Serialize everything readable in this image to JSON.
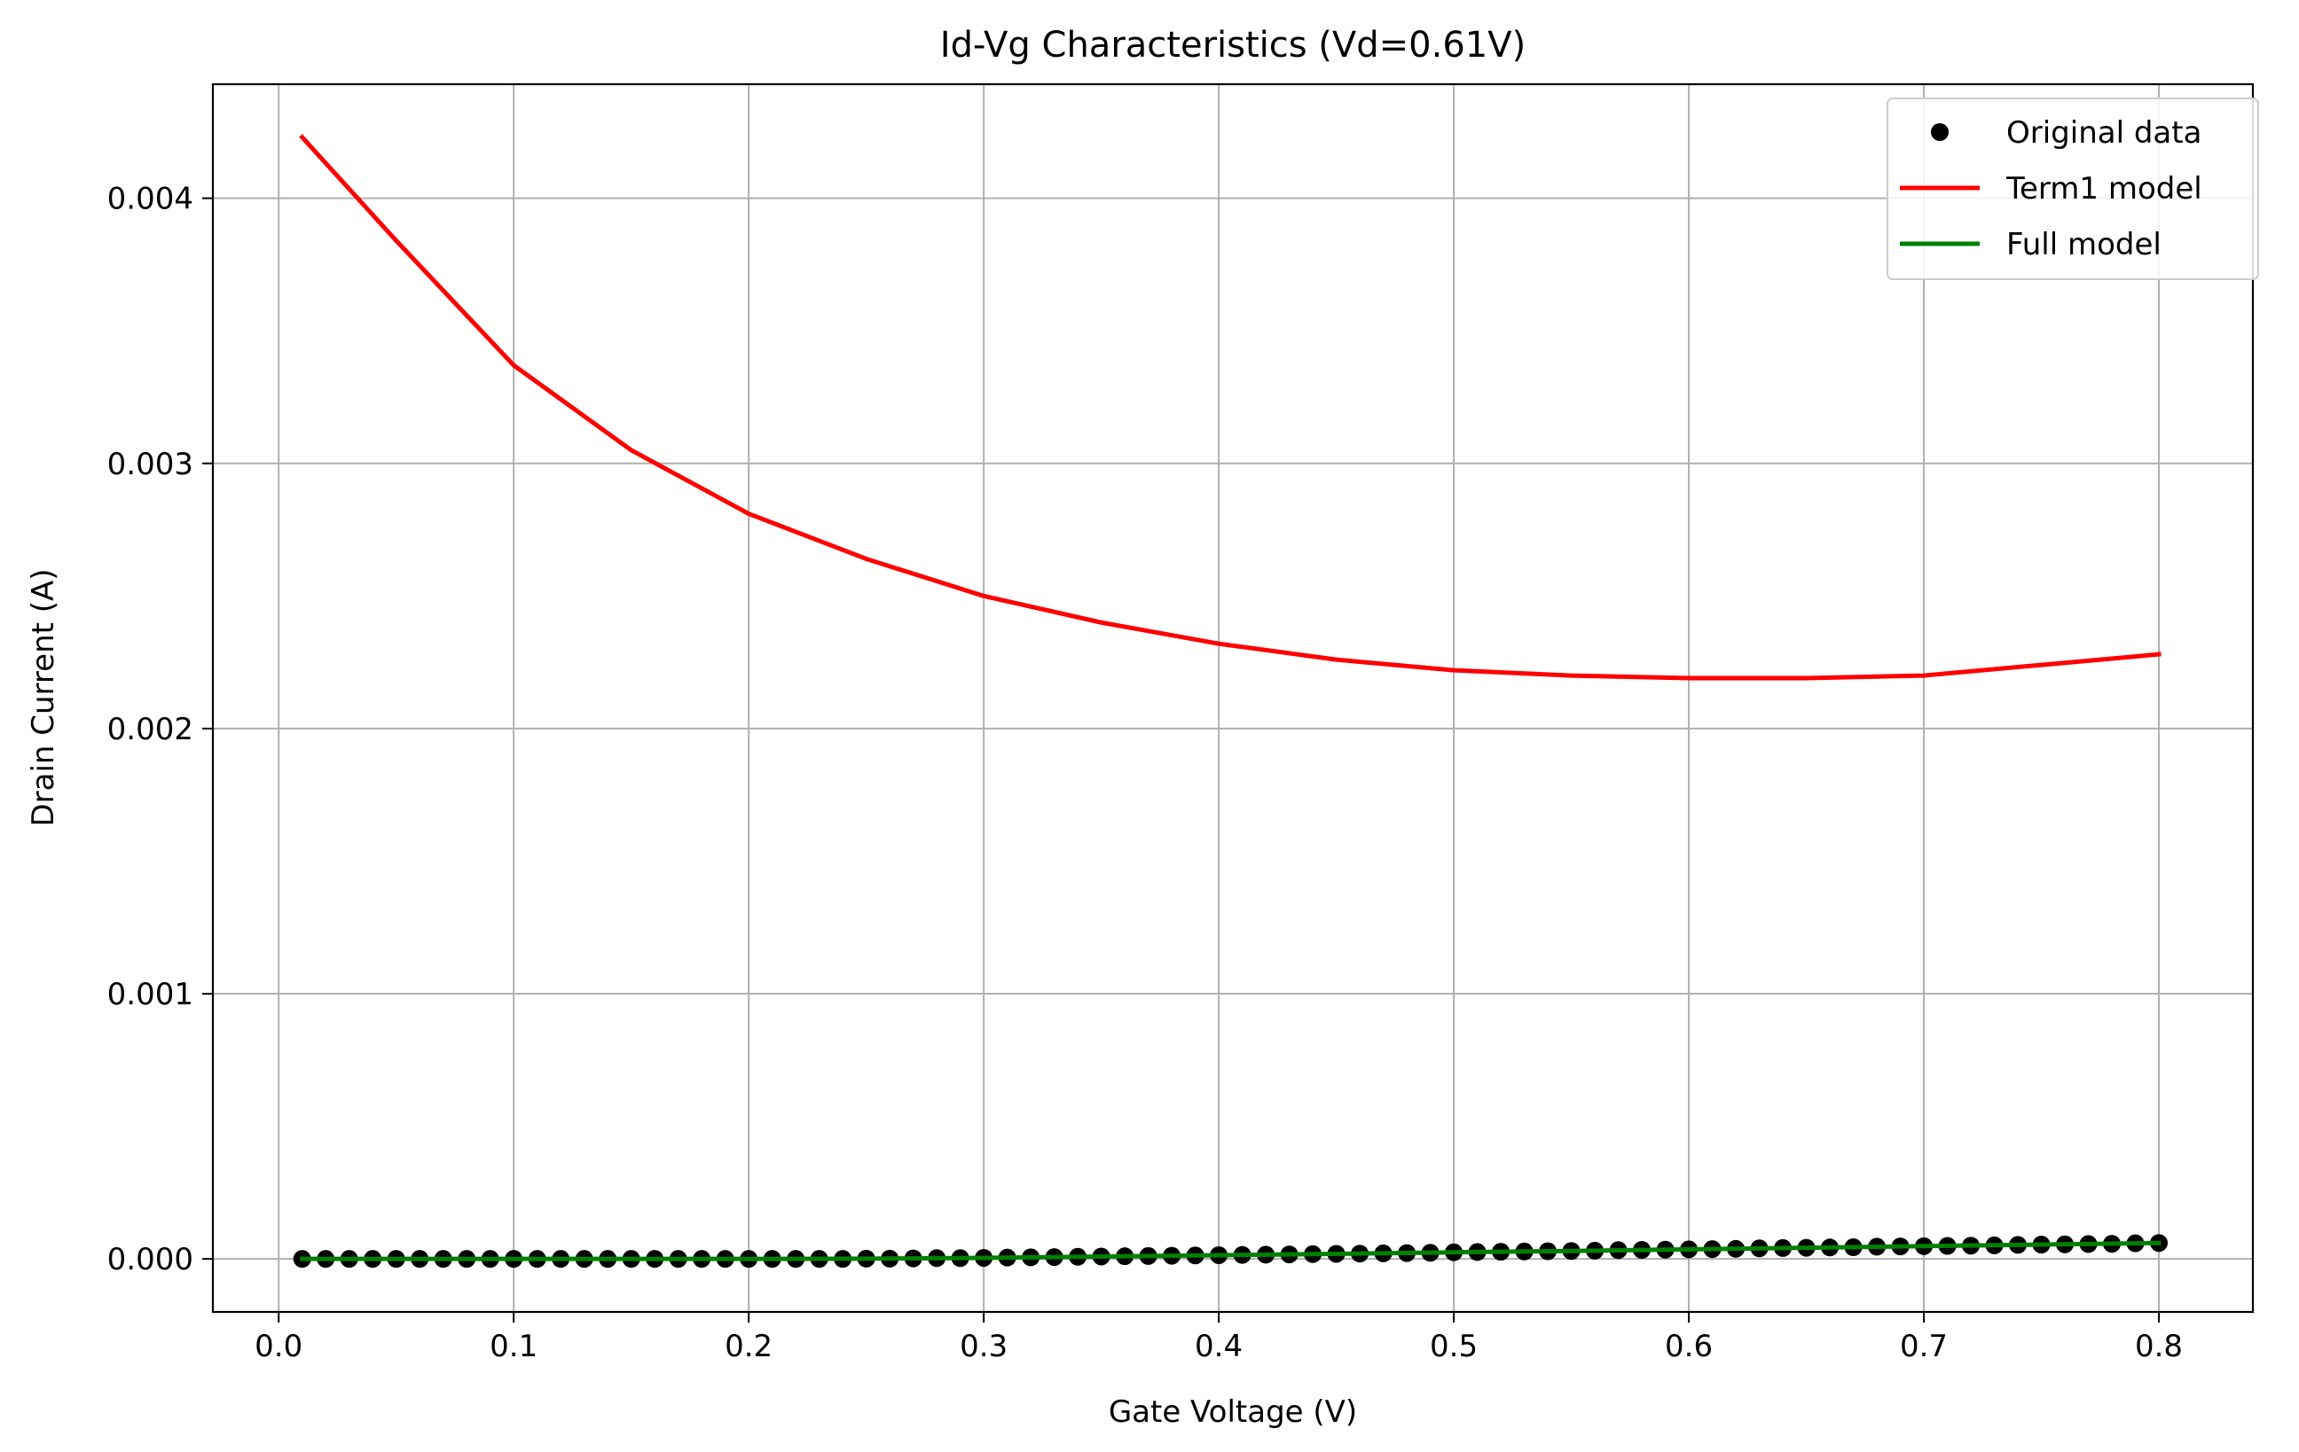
{
  "chart_data": {
    "type": "line",
    "title": "Id-Vg Characteristics (Vd=0.61V)",
    "xlabel": "Gate Voltage (V)",
    "ylabel": "Drain Current (A)",
    "xlim": [
      -0.028,
      0.84
    ],
    "ylim": [
      -0.0002,
      0.00443
    ],
    "xticks": [
      0.0,
      0.1,
      0.2,
      0.3,
      0.4,
      0.5,
      0.6,
      0.7,
      0.8
    ],
    "xtick_labels": [
      "0.0",
      "0.1",
      "0.2",
      "0.3",
      "0.4",
      "0.5",
      "0.6",
      "0.7",
      "0.8"
    ],
    "yticks": [
      0.0,
      0.001,
      0.002,
      0.003,
      0.004
    ],
    "ytick_labels": [
      "0.000",
      "0.001",
      "0.002",
      "0.003",
      "0.004"
    ],
    "grid": true,
    "legend_position": "top-right",
    "series": [
      {
        "name": "Original data",
        "kind": "scatter",
        "color": "#000000",
        "x": [
          0.01,
          0.02,
          0.03,
          0.04,
          0.05,
          0.06,
          0.07,
          0.08,
          0.09,
          0.1,
          0.11,
          0.12,
          0.13,
          0.14,
          0.15,
          0.16,
          0.17,
          0.18,
          0.19,
          0.2,
          0.21,
          0.22,
          0.23,
          0.24,
          0.25,
          0.26,
          0.27,
          0.28,
          0.29,
          0.3,
          0.31,
          0.32,
          0.33,
          0.34,
          0.35,
          0.36,
          0.37,
          0.38,
          0.39,
          0.4,
          0.41,
          0.42,
          0.43,
          0.44,
          0.45,
          0.46,
          0.47,
          0.48,
          0.49,
          0.5,
          0.51,
          0.52,
          0.53,
          0.54,
          0.55,
          0.56,
          0.57,
          0.58,
          0.59,
          0.6,
          0.61,
          0.62,
          0.63,
          0.64,
          0.65,
          0.66,
          0.67,
          0.68,
          0.69,
          0.7,
          0.71,
          0.72,
          0.73,
          0.74,
          0.75,
          0.76,
          0.77,
          0.78,
          0.79,
          0.8
        ],
        "y": [
          0.0,
          0.0,
          0.0,
          0.0,
          0.0,
          0.0,
          0.0,
          0.0,
          0.0,
          0.0,
          0.0,
          0.0,
          0.0,
          0.0,
          0.0,
          0.0,
          0.0,
          0.0,
          0.0,
          0.0,
          0.0,
          0.0,
          0.0,
          0.0,
          1e-06,
          1e-06,
          2e-06,
          3e-06,
          3e-06,
          4e-06,
          5e-06,
          6e-06,
          7e-06,
          8e-06,
          9e-06,
          1e-05,
          1.1e-05,
          1.2e-05,
          1.3e-05,
          1.4e-05,
          1.5e-05,
          1.6e-05,
          1.7e-05,
          1.8e-05,
          1.9e-05,
          2e-05,
          2.1e-05,
          2.2e-05,
          2.3e-05,
          2.5e-05,
          2.6e-05,
          2.7e-05,
          2.8e-05,
          2.9e-05,
          3e-05,
          3.1e-05,
          3.3e-05,
          3.4e-05,
          3.5e-05,
          3.6e-05,
          3.7e-05,
          3.8e-05,
          4e-05,
          4.1e-05,
          4.2e-05,
          4.3e-05,
          4.4e-05,
          4.6e-05,
          4.7e-05,
          4.8e-05,
          4.9e-05,
          5e-05,
          5.1e-05,
          5.3e-05,
          5.4e-05,
          5.5e-05,
          5.6e-05,
          5.7e-05,
          5.9e-05,
          6e-05
        ]
      },
      {
        "name": "Term1 model",
        "kind": "line",
        "color": "#ff0000",
        "x": [
          0.01,
          0.05,
          0.1,
          0.15,
          0.2,
          0.25,
          0.3,
          0.35,
          0.4,
          0.45,
          0.5,
          0.55,
          0.6,
          0.65,
          0.7,
          0.75,
          0.8
        ],
        "y": [
          0.00423,
          0.00384,
          0.00337,
          0.00305,
          0.00281,
          0.00264,
          0.0025,
          0.0024,
          0.00232,
          0.00226,
          0.00222,
          0.0022,
          0.00219,
          0.00219,
          0.0022,
          0.00224,
          0.00228
        ]
      },
      {
        "name": "Full model",
        "kind": "line",
        "color": "#008000",
        "x": [
          0.01,
          0.05,
          0.1,
          0.15,
          0.2,
          0.25,
          0.3,
          0.35,
          0.4,
          0.45,
          0.5,
          0.55,
          0.6,
          0.65,
          0.7,
          0.75,
          0.8
        ],
        "y": [
          0.0,
          0.0,
          0.0,
          0.0,
          0.0,
          1e-06,
          4e-06,
          9e-06,
          1.4e-05,
          1.9e-05,
          2.5e-05,
          3e-05,
          3.6e-05,
          4.2e-05,
          4.8e-05,
          5.4e-05,
          6e-05
        ]
      }
    ]
  }
}
